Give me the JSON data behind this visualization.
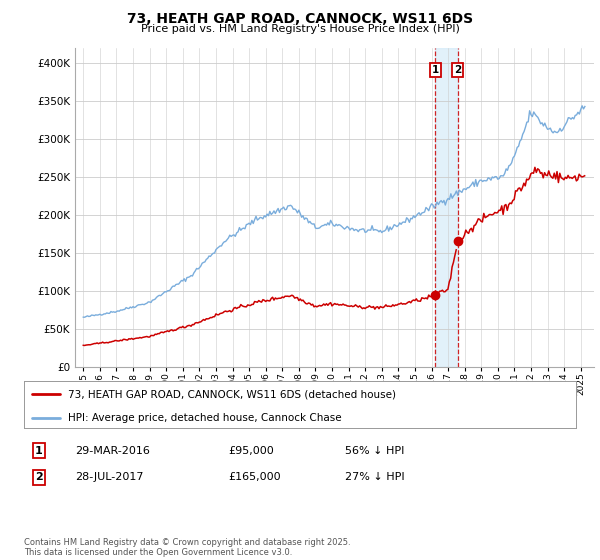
{
  "title1": "73, HEATH GAP ROAD, CANNOCK, WS11 6DS",
  "title2": "Price paid vs. HM Land Registry's House Price Index (HPI)",
  "legend_line1": "73, HEATH GAP ROAD, CANNOCK, WS11 6DS (detached house)",
  "legend_line2": "HPI: Average price, detached house, Cannock Chase",
  "transaction1_label": "1",
  "transaction1_date": "29-MAR-2016",
  "transaction1_price": "£95,000",
  "transaction1_note": "56% ↓ HPI",
  "transaction2_label": "2",
  "transaction2_date": "28-JUL-2017",
  "transaction2_price": "£165,000",
  "transaction2_note": "27% ↓ HPI",
  "footnote": "Contains HM Land Registry data © Crown copyright and database right 2025.\nThis data is licensed under the Open Government Licence v3.0.",
  "hpi_color": "#7aaddc",
  "price_color": "#cc0000",
  "vline_color": "#cc0000",
  "vband_color": "#d0e8f8",
  "marker1_date": 2016.24,
  "marker1_price": 95000,
  "marker2_date": 2017.57,
  "marker2_price": 165000,
  "ylim": [
    0,
    420000
  ],
  "yticks": [
    0,
    50000,
    100000,
    150000,
    200000,
    250000,
    300000,
    350000,
    400000
  ],
  "xlim_start": 1994.5,
  "xlim_end": 2025.8,
  "xticks": [
    1995,
    1996,
    1997,
    1998,
    1999,
    2000,
    2001,
    2002,
    2003,
    2004,
    2005,
    2006,
    2007,
    2008,
    2009,
    2010,
    2011,
    2012,
    2013,
    2014,
    2015,
    2016,
    2017,
    2018,
    2019,
    2020,
    2021,
    2022,
    2023,
    2024,
    2025
  ]
}
